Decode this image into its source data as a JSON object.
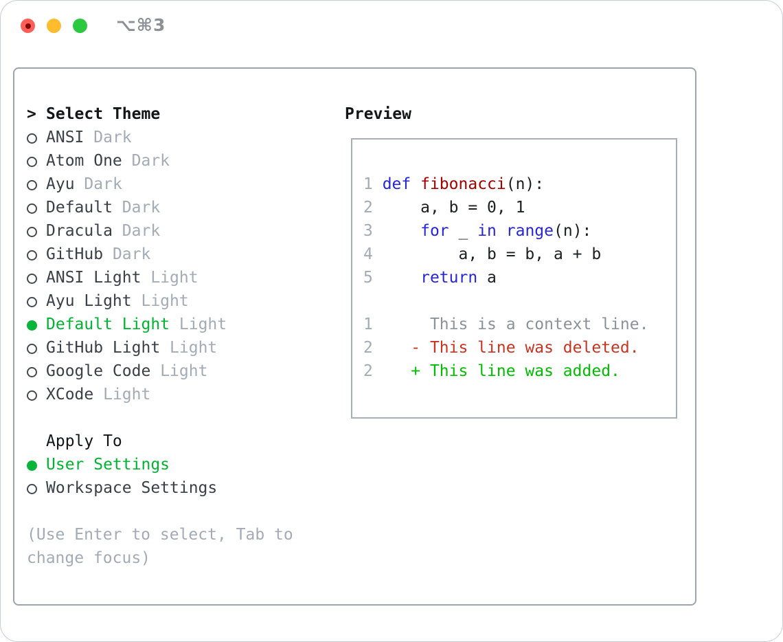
{
  "window": {
    "title": "⌥⌘3"
  },
  "colors": {
    "accent_green": "#09b43a",
    "selected_text_green": "#00b432",
    "keyword_blue": "#2626d8",
    "function_red": "#a40000",
    "diff_deleted_red": "#c9331f",
    "diff_added_green": "#00bd00",
    "muted_gray": "#a2abb6",
    "context_gray": "#8b9299",
    "item_text": "#3a4047",
    "heading_text": "#131619",
    "panel_border": "#9ba4af",
    "traffic_red": "#ff5f57",
    "traffic_yellow": "#febc2e",
    "traffic_green": "#2bc840"
  },
  "selector": {
    "prompt": ">",
    "title": "Select Theme",
    "themes": [
      {
        "name": "ANSI",
        "variant": "Dark",
        "selected": false
      },
      {
        "name": "Atom One",
        "variant": "Dark",
        "selected": false
      },
      {
        "name": "Ayu",
        "variant": "Dark",
        "selected": false
      },
      {
        "name": "Default",
        "variant": "Dark",
        "selected": false
      },
      {
        "name": "Dracula",
        "variant": "Dark",
        "selected": false
      },
      {
        "name": "GitHub",
        "variant": "Dark",
        "selected": false
      },
      {
        "name": "ANSI Light",
        "variant": "Light",
        "selected": false
      },
      {
        "name": "Ayu Light",
        "variant": "Light",
        "selected": false
      },
      {
        "name": "Default Light",
        "variant": "Light",
        "selected": true
      },
      {
        "name": "GitHub Light",
        "variant": "Light",
        "selected": false
      },
      {
        "name": "Google Code",
        "variant": "Light",
        "selected": false
      },
      {
        "name": "XCode",
        "variant": "Light",
        "selected": false
      }
    ],
    "apply_to": {
      "title": "Apply To",
      "options": [
        {
          "label": "User Settings",
          "selected": true
        },
        {
          "label": "Workspace Settings",
          "selected": false
        }
      ]
    },
    "hint": "(Use Enter to select, Tab to\nchange focus)"
  },
  "preview": {
    "title": "Preview",
    "lines": [
      {
        "num": "1",
        "segs": [
          {
            "c": "kw",
            "t": "def"
          },
          {
            "c": "tx",
            "t": " "
          },
          {
            "c": "fn",
            "t": "fibonacci"
          },
          {
            "c": "tx",
            "t": "(n):"
          }
        ]
      },
      {
        "num": "2",
        "segs": [
          {
            "c": "tx",
            "t": "    a, b = 0, 1"
          }
        ]
      },
      {
        "num": "3",
        "segs": [
          {
            "c": "tx",
            "t": "    "
          },
          {
            "c": "kw",
            "t": "for"
          },
          {
            "c": "tx",
            "t": " _ "
          },
          {
            "c": "kw",
            "t": "in"
          },
          {
            "c": "tx",
            "t": " "
          },
          {
            "c": "kw",
            "t": "range"
          },
          {
            "c": "tx",
            "t": "(n):"
          }
        ]
      },
      {
        "num": "4",
        "segs": [
          {
            "c": "tx",
            "t": "        a, b = b, a + b"
          }
        ]
      },
      {
        "num": "5",
        "segs": [
          {
            "c": "tx",
            "t": "    "
          },
          {
            "c": "kw",
            "t": "return"
          },
          {
            "c": "tx",
            "t": " a"
          }
        ]
      },
      {
        "num": "",
        "segs": []
      },
      {
        "num": "1",
        "segs": [
          {
            "c": "ctx",
            "t": "     This is a context line."
          }
        ]
      },
      {
        "num": "2",
        "segs": [
          {
            "c": "del",
            "t": "   - This line was deleted."
          }
        ]
      },
      {
        "num": "2",
        "segs": [
          {
            "c": "add",
            "t": "   + This line was added."
          }
        ]
      }
    ]
  }
}
